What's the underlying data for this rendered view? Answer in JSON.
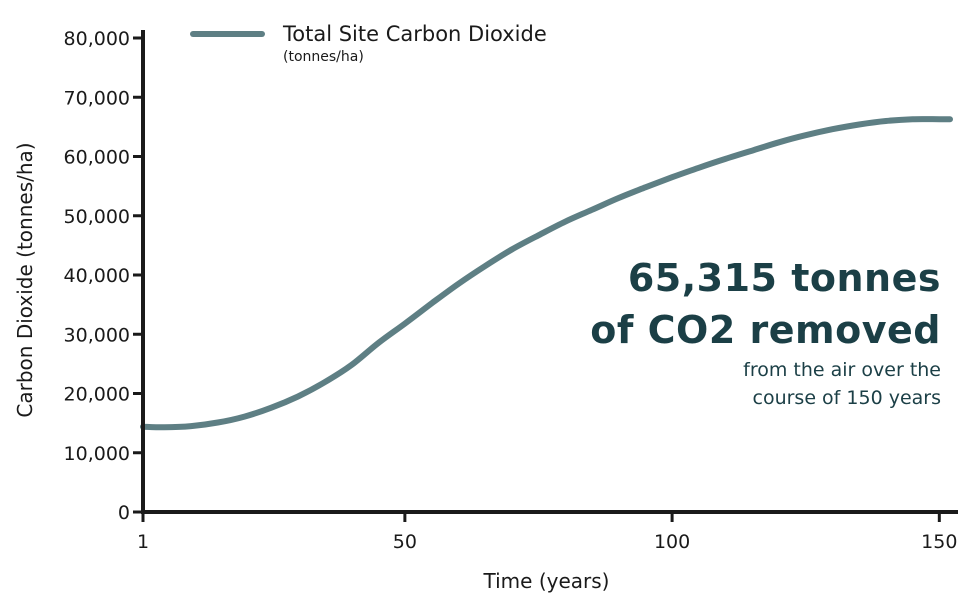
{
  "chart_data": {
    "type": "line",
    "xlabel": "Time (years)",
    "ylabel": "Carbon Dioxide (tonnes/ha)",
    "xlim": [
      1,
      152
    ],
    "ylim": [
      0,
      80000
    ],
    "x_ticks": [
      1,
      50,
      100,
      150
    ],
    "y_ticks": [
      0,
      10000,
      20000,
      30000,
      40000,
      50000,
      60000,
      70000,
      80000
    ],
    "x_tick_labels": [
      "1",
      "50",
      "100",
      "150"
    ],
    "y_tick_labels": [
      "0",
      "10,000",
      "20,000",
      "30,000",
      "40,000",
      "50,000",
      "60,000",
      "70,000",
      "80,000"
    ],
    "grid": false,
    "legend": {
      "position": "top-left",
      "label": "Total Site Carbon Dioxide",
      "sublabel": "(tonnes/ha)"
    },
    "series": [
      {
        "name": "Total Site Carbon Dioxide",
        "color": "#5e7f84",
        "x": [
          1,
          5,
          10,
          15,
          20,
          25,
          30,
          35,
          40,
          45,
          50,
          55,
          60,
          65,
          70,
          75,
          80,
          85,
          90,
          95,
          100,
          105,
          110,
          115,
          120,
          125,
          130,
          135,
          140,
          145,
          150,
          152
        ],
        "y": [
          14400,
          14300,
          14500,
          15100,
          16100,
          17600,
          19500,
          21900,
          24800,
          28500,
          31800,
          35200,
          38500,
          41500,
          44300,
          46700,
          49000,
          51000,
          53000,
          54800,
          56500,
          58100,
          59600,
          61000,
          62400,
          63600,
          64600,
          65400,
          66000,
          66300,
          66300,
          66300
        ]
      }
    ]
  },
  "annotation": {
    "line1": "65,315 tonnes",
    "line2": "of CO2 removed",
    "line3": "from the air over the",
    "line4": "course of 150 years"
  }
}
